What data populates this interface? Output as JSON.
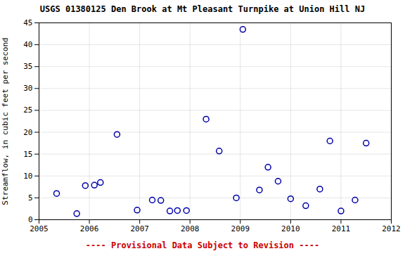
{
  "chart_data": {
    "type": "scatter",
    "title": "USGS 01380125 Den Brook at Mt Pleasant Turnpike at Union Hill NJ",
    "ylabel": "Streamflow, in cubic feet per second",
    "annotations": [
      {
        "text": "---- Provisional Data Subject to Revision ----",
        "color": "#cc0000"
      }
    ],
    "x": [
      2005.35,
      2005.75,
      2005.92,
      2006.1,
      2006.22,
      2006.55,
      2006.95,
      2007.25,
      2007.42,
      2007.6,
      2007.75,
      2007.93,
      2008.32,
      2008.58,
      2008.92,
      2009.05,
      2009.38,
      2009.55,
      2009.75,
      2010.0,
      2010.3,
      2010.58,
      2010.78,
      2011.0,
      2011.28,
      2011.5
    ],
    "values": [
      6.0,
      1.4,
      7.8,
      7.9,
      8.5,
      19.5,
      2.2,
      4.5,
      4.4,
      2.0,
      2.1,
      2.1,
      23.0,
      15.7,
      5.0,
      43.5,
      6.8,
      12.0,
      8.8,
      4.8,
      3.2,
      7.0,
      18.0,
      2.0,
      4.5,
      17.5
    ],
    "color": "#0000aa",
    "marker": "circle",
    "xlim": [
      2005,
      2012
    ],
    "ylim": [
      0,
      45
    ],
    "xticks": [
      2005,
      2006,
      2007,
      2008,
      2009,
      2010,
      2011,
      2012
    ],
    "yticks": [
      0,
      5,
      10,
      15,
      20,
      25,
      30,
      35,
      40,
      45
    ],
    "grid": true
  }
}
